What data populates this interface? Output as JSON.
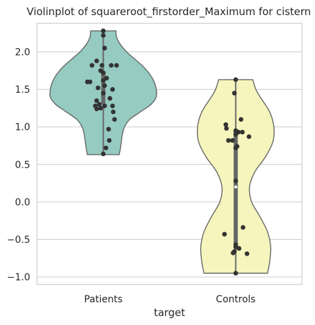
{
  "chart_data": {
    "type": "violin",
    "title": "Violinplot of squareroot_firstorder_Maximum for cistern",
    "xlabel": "target",
    "ylabel": "",
    "categories": [
      "Patients",
      "Controls"
    ],
    "ylim": [
      -1.1,
      2.38
    ],
    "yticks": [
      -1.0,
      -0.5,
      0.0,
      0.5,
      1.0,
      1.5,
      2.0
    ],
    "ytick_labels": [
      "−1.0",
      "−0.5",
      "0.0",
      "0.5",
      "1.0",
      "1.5",
      "2.0"
    ],
    "grid": true,
    "colors": {
      "Patients": "#96cbc1",
      "Controls": "#f6f5bd"
    },
    "series": [
      {
        "category": "Patients",
        "min": 0.63,
        "max": 2.28,
        "q1": 1.3,
        "median": 1.46,
        "q3": 1.74,
        "density": [
          [
            0.63,
            0.3
          ],
          [
            0.7,
            0.32
          ],
          [
            0.8,
            0.34
          ],
          [
            0.9,
            0.36
          ],
          [
            1.0,
            0.4
          ],
          [
            1.1,
            0.5
          ],
          [
            1.2,
            0.7
          ],
          [
            1.3,
            0.9
          ],
          [
            1.4,
            1.0
          ],
          [
            1.5,
            1.0
          ],
          [
            1.6,
            0.96
          ],
          [
            1.7,
            0.88
          ],
          [
            1.8,
            0.76
          ],
          [
            1.9,
            0.6
          ],
          [
            2.0,
            0.44
          ],
          [
            2.1,
            0.32
          ],
          [
            2.2,
            0.25
          ],
          [
            2.28,
            0.24
          ]
        ],
        "points": [
          [
            0.0,
            2.28
          ],
          [
            0.0,
            2.22
          ],
          [
            0.02,
            2.05
          ],
          [
            -0.1,
            1.88
          ],
          [
            -0.02,
            1.82
          ],
          [
            -0.17,
            1.82
          ],
          [
            0.12,
            1.82
          ],
          [
            0.2,
            1.82
          ],
          [
            -0.04,
            1.75
          ],
          [
            0.0,
            1.72
          ],
          [
            0.05,
            1.65
          ],
          [
            -0.24,
            1.6
          ],
          [
            -0.2,
            1.6
          ],
          [
            0.0,
            1.62
          ],
          [
            0.02,
            1.55
          ],
          [
            0.14,
            1.5
          ],
          [
            -0.08,
            1.52
          ],
          [
            0.0,
            1.45
          ],
          [
            -0.1,
            1.35
          ],
          [
            0.1,
            1.38
          ],
          [
            -0.06,
            1.3
          ],
          [
            -0.12,
            1.28
          ],
          [
            0.02,
            1.28
          ],
          [
            0.14,
            1.28
          ],
          [
            -0.04,
            1.25
          ],
          [
            -0.1,
            1.24
          ],
          [
            0.15,
            1.2
          ],
          [
            0.17,
            1.1
          ],
          [
            0.08,
            0.97
          ],
          [
            0.09,
            0.82
          ],
          [
            0.04,
            0.72
          ],
          [
            0.0,
            0.64
          ]
        ]
      },
      {
        "category": "Controls",
        "min": -0.95,
        "max": 1.63,
        "q1": -0.6,
        "median": 0.2,
        "q3": 0.95,
        "density": [
          [
            -0.95,
            0.6
          ],
          [
            -0.8,
            0.64
          ],
          [
            -0.6,
            0.66
          ],
          [
            -0.4,
            0.6
          ],
          [
            -0.2,
            0.46
          ],
          [
            0.0,
            0.3
          ],
          [
            0.2,
            0.26
          ],
          [
            0.4,
            0.36
          ],
          [
            0.6,
            0.56
          ],
          [
            0.8,
            0.7
          ],
          [
            1.0,
            0.72
          ],
          [
            1.2,
            0.64
          ],
          [
            1.4,
            0.46
          ],
          [
            1.5,
            0.38
          ],
          [
            1.63,
            0.32
          ]
        ],
        "points": [
          [
            0.0,
            1.63
          ],
          [
            -0.02,
            1.45
          ],
          [
            0.08,
            1.1
          ],
          [
            -0.15,
            1.03
          ],
          [
            -0.14,
            0.98
          ],
          [
            0.0,
            0.95
          ],
          [
            0.04,
            0.93
          ],
          [
            0.1,
            0.93
          ],
          [
            0.0,
            0.9
          ],
          [
            0.2,
            0.87
          ],
          [
            -0.11,
            0.82
          ],
          [
            -0.05,
            0.82
          ],
          [
            0.02,
            0.74
          ],
          [
            0.0,
            0.72
          ],
          [
            0.0,
            0.28
          ],
          [
            0.11,
            -0.34
          ],
          [
            -0.17,
            -0.43
          ],
          [
            0.0,
            -0.57
          ],
          [
            0.0,
            -0.6
          ],
          [
            0.05,
            -0.62
          ],
          [
            -0.04,
            -0.68
          ],
          [
            -0.02,
            -0.66
          ],
          [
            0.17,
            -0.69
          ],
          [
            0.0,
            -0.95
          ]
        ]
      }
    ]
  }
}
